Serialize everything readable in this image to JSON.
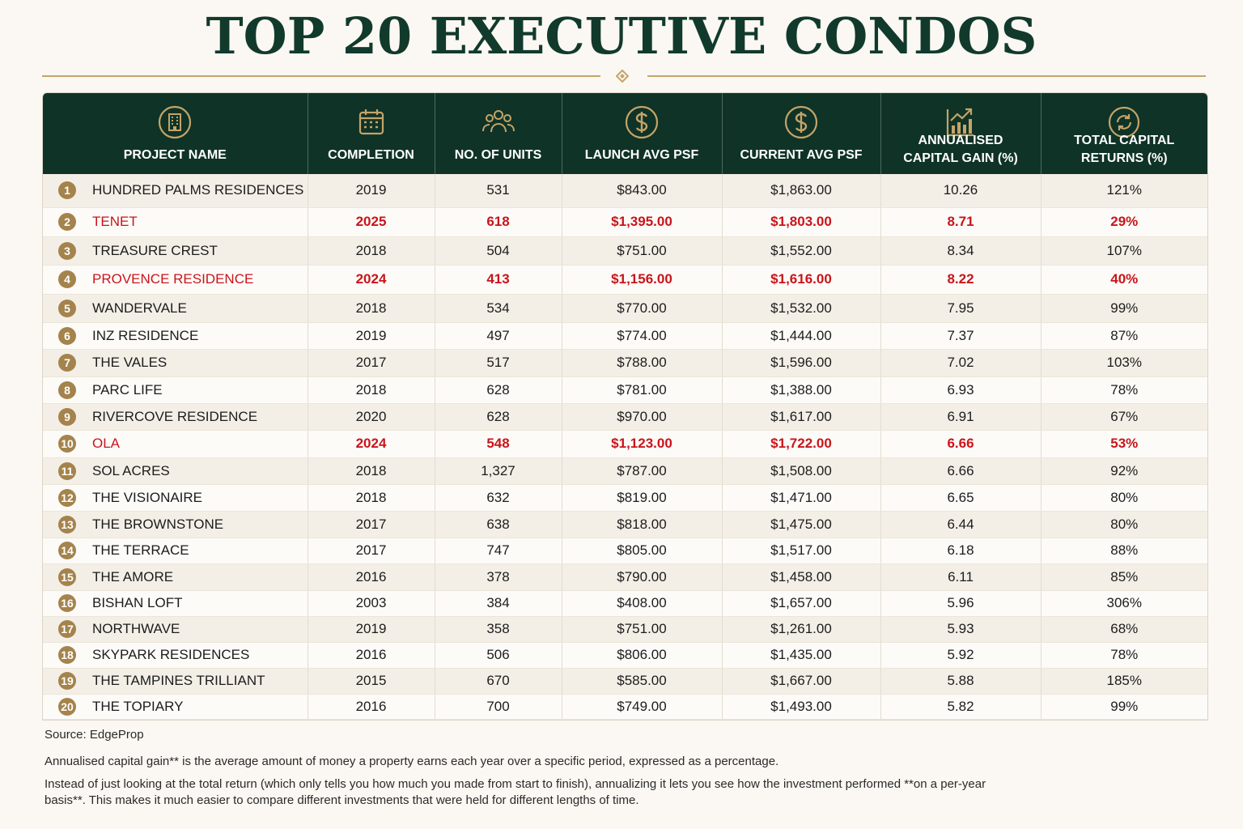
{
  "title": "TOP 20 EXECUTIVE CONDOS",
  "colors": {
    "header_bg": "#0f3327",
    "accent_gold": "#c4a468",
    "highlight_red": "#c8151b",
    "title": "#123a2c"
  },
  "columns": [
    {
      "label": "PROJECT NAME",
      "icon": "building-icon"
    },
    {
      "label": "COMPLETION",
      "icon": "calendar-icon"
    },
    {
      "label": "NO. OF UNITS",
      "icon": "people-icon"
    },
    {
      "label": "LAUNCH AVG PSF",
      "icon": "dollar-icon"
    },
    {
      "label": "CURRENT AVG PSF",
      "icon": "dollar-icon"
    },
    {
      "label": "ANNUALISED\nCAPITAL GAIN (%)",
      "icon": "growth-chart-icon"
    },
    {
      "label": "TOTAL CAPITAL\nRETURNS (%)",
      "icon": "refresh-coin-icon"
    }
  ],
  "rows": [
    {
      "rank": "1",
      "name": "HUNDRED PALMS RESIDENCES",
      "completion": "2019",
      "units": "531",
      "launch_psf": "$843.00",
      "current_psf": "$1,863.00",
      "annual_gain": "10.26",
      "total_return": "121%",
      "highlight": false
    },
    {
      "rank": "2",
      "name": "TENET",
      "completion": "2025",
      "units": "618",
      "launch_psf": "$1,395.00",
      "current_psf": "$1,803.00",
      "annual_gain": "8.71",
      "total_return": "29%",
      "highlight": true
    },
    {
      "rank": "3",
      "name": "TREASURE CREST",
      "completion": "2018",
      "units": "504",
      "launch_psf": "$751.00",
      "current_psf": "$1,552.00",
      "annual_gain": "8.34",
      "total_return": "107%",
      "highlight": false
    },
    {
      "rank": "4",
      "name": "PROVENCE RESIDENCE",
      "completion": "2024",
      "units": "413",
      "launch_psf": "$1,156.00",
      "current_psf": "$1,616.00",
      "annual_gain": "8.22",
      "total_return": "40%",
      "highlight": true
    },
    {
      "rank": "5",
      "name": "WANDERVALE",
      "completion": "2018",
      "units": "534",
      "launch_psf": "$770.00",
      "current_psf": "$1,532.00",
      "annual_gain": "7.95",
      "total_return": "99%",
      "highlight": false
    },
    {
      "rank": "6",
      "name": "INZ RESIDENCE",
      "completion": "2019",
      "units": "497",
      "launch_psf": "$774.00",
      "current_psf": "$1,444.00",
      "annual_gain": "7.37",
      "total_return": "87%",
      "highlight": false
    },
    {
      "rank": "7",
      "name": "THE VALES",
      "completion": "2017",
      "units": "517",
      "launch_psf": "$788.00",
      "current_psf": "$1,596.00",
      "annual_gain": "7.02",
      "total_return": "103%",
      "highlight": false
    },
    {
      "rank": "8",
      "name": "PARC LIFE",
      "completion": "2018",
      "units": "628",
      "launch_psf": "$781.00",
      "current_psf": "$1,388.00",
      "annual_gain": "6.93",
      "total_return": "78%",
      "highlight": false
    },
    {
      "rank": "9",
      "name": "RIVERCOVE RESIDENCE",
      "completion": "2020",
      "units": "628",
      "launch_psf": "$970.00",
      "current_psf": "$1,617.00",
      "annual_gain": "6.91",
      "total_return": "67%",
      "highlight": false
    },
    {
      "rank": "10",
      "name": "OLA",
      "completion": "2024",
      "units": "548",
      "launch_psf": "$1,123.00",
      "current_psf": "$1,722.00",
      "annual_gain": "6.66",
      "total_return": "53%",
      "highlight": true
    },
    {
      "rank": "11",
      "name": "SOL ACRES",
      "completion": "2018",
      "units": "1,327",
      "launch_psf": "$787.00",
      "current_psf": "$1,508.00",
      "annual_gain": "6.66",
      "total_return": "92%",
      "highlight": false
    },
    {
      "rank": "12",
      "name": "THE VISIONAIRE",
      "completion": "2018",
      "units": "632",
      "launch_psf": "$819.00",
      "current_psf": "$1,471.00",
      "annual_gain": "6.65",
      "total_return": "80%",
      "highlight": false
    },
    {
      "rank": "13",
      "name": "THE BROWNSTONE",
      "completion": "2017",
      "units": "638",
      "launch_psf": "$818.00",
      "current_psf": "$1,475.00",
      "annual_gain": "6.44",
      "total_return": "80%",
      "highlight": false
    },
    {
      "rank": "14",
      "name": "THE TERRACE",
      "completion": "2017",
      "units": "747",
      "launch_psf": "$805.00",
      "current_psf": "$1,517.00",
      "annual_gain": "6.18",
      "total_return": "88%",
      "highlight": false
    },
    {
      "rank": "15",
      "name": "THE AMORE",
      "completion": "2016",
      "units": "378",
      "launch_psf": "$790.00",
      "current_psf": "$1,458.00",
      "annual_gain": "6.11",
      "total_return": "85%",
      "highlight": false
    },
    {
      "rank": "16",
      "name": "BISHAN LOFT",
      "completion": "2003",
      "units": "384",
      "launch_psf": "$408.00",
      "current_psf": "$1,657.00",
      "annual_gain": "5.96",
      "total_return": "306%",
      "highlight": false
    },
    {
      "rank": "17",
      "name": "NORTHWAVE",
      "completion": "2019",
      "units": "358",
      "launch_psf": "$751.00",
      "current_psf": "$1,261.00",
      "annual_gain": "5.93",
      "total_return": "68%",
      "highlight": false
    },
    {
      "rank": "18",
      "name": "SKYPARK RESIDENCES",
      "completion": "2016",
      "units": "506",
      "launch_psf": "$806.00",
      "current_psf": "$1,435.00",
      "annual_gain": "5.92",
      "total_return": "78%",
      "highlight": false
    },
    {
      "rank": "19",
      "name": "THE TAMPINES TRILLIANT",
      "completion": "2015",
      "units": "670",
      "launch_psf": "$585.00",
      "current_psf": "$1,667.00",
      "annual_gain": "5.88",
      "total_return": "185%",
      "highlight": false
    },
    {
      "rank": "20",
      "name": "THE TOPIARY",
      "completion": "2016",
      "units": "700",
      "launch_psf": "$749.00",
      "current_psf": "$1,493.00",
      "annual_gain": "5.82",
      "total_return": "99%",
      "highlight": false
    }
  ],
  "notes": {
    "source": "Source: EdgeProp",
    "note1": "Annualised capital gain** is the average amount of money a property earns each year over a specific period, expressed as a percentage.",
    "note2": "Instead of just looking at the total return (which only tells you how much you made from start to finish), annualizing it lets you see how the investment performed **on a per-year basis**. This makes it much easier to compare different investments that were held for different lengths of time."
  }
}
